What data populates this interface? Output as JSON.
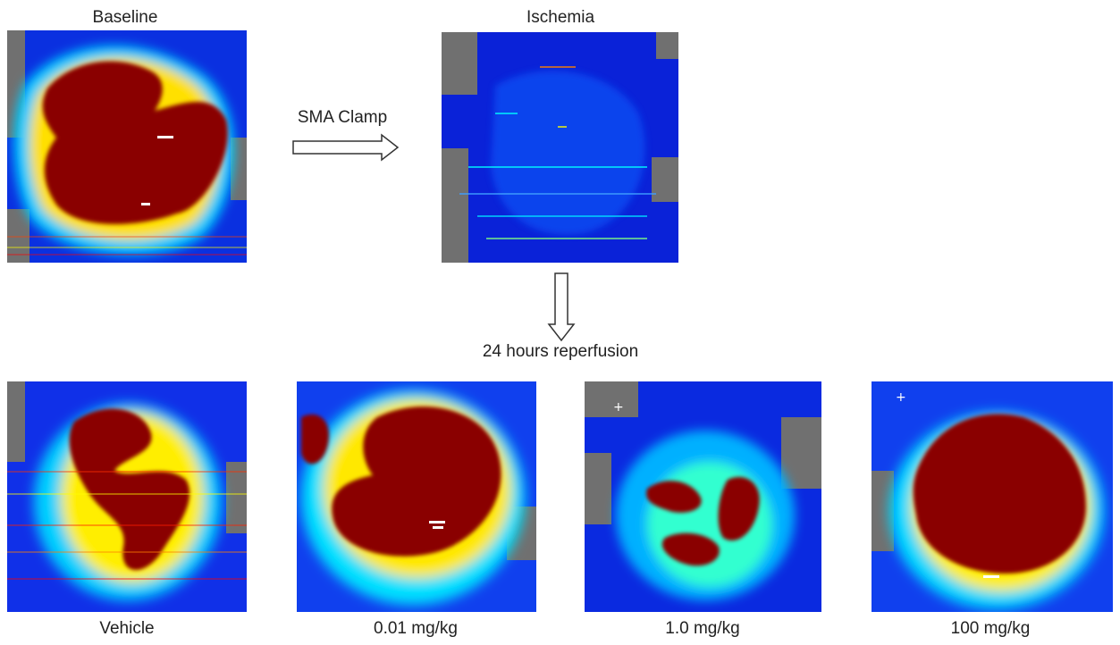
{
  "top": {
    "baseline_label": "Baseline",
    "ischemia_label": "Ischemia"
  },
  "arrows": {
    "horizontal_label": "SMA Clamp",
    "vertical_label": "24 hours reperfusion"
  },
  "bottom": {
    "labels": [
      "Vehicle",
      "0.01 mg/kg",
      "1.0 mg/kg",
      "100 mg/kg"
    ]
  },
  "colormap": [
    "#00008f",
    "#0010ff",
    "#0080ff",
    "#00ffff",
    "#80ff80",
    "#ffff00",
    "#ff8000",
    "#ff0000",
    "#800000"
  ]
}
